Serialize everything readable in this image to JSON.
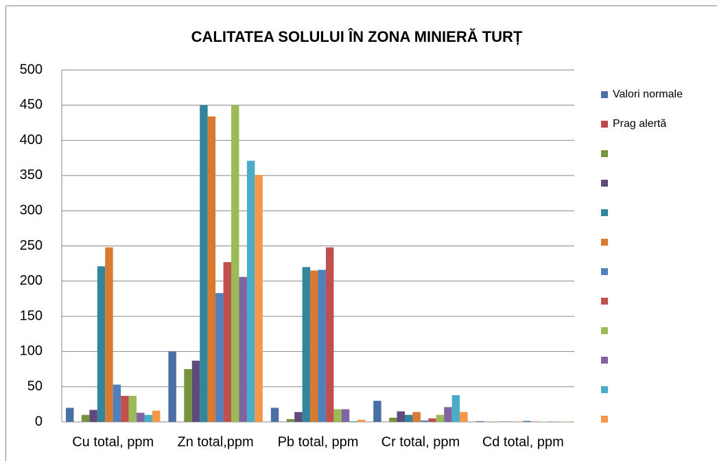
{
  "chart_data": {
    "type": "bar",
    "title": "CALITATEA SOLULUI ÎN ZONA MINIERĂ TURȚ",
    "categories": [
      "Cu total, ppm",
      "Zn total,ppm",
      "Pb total, ppm",
      "Cr total, ppm",
      "Cd total, ppm"
    ],
    "series": [
      {
        "name": "Valori normale",
        "color": "#4a6fa5",
        "values": [
          20,
          100,
          20,
          30,
          1
        ]
      },
      {
        "name": "Prag alertă",
        "color": "#be4b48",
        "values": [
          null,
          null,
          null,
          null,
          null
        ]
      },
      {
        "name": null,
        "color": "#77933c",
        "values": [
          10,
          75,
          4,
          6,
          0.5
        ]
      },
      {
        "name": null,
        "color": "#604a7b",
        "values": [
          17,
          87,
          14,
          15,
          0.5
        ]
      },
      {
        "name": null,
        "color": "#31859c",
        "values": [
          221,
          450,
          220,
          10,
          0.5
        ]
      },
      {
        "name": null,
        "color": "#d87a2f",
        "values": [
          248,
          434,
          215,
          14,
          0.5
        ]
      },
      {
        "name": null,
        "color": "#4f81bd",
        "values": [
          53,
          183,
          216,
          2,
          1.5
        ]
      },
      {
        "name": null,
        "color": "#c0504d",
        "values": [
          37,
          227,
          248,
          5,
          0.5
        ]
      },
      {
        "name": null,
        "color": "#9bbb59",
        "values": [
          37,
          450,
          18,
          10,
          0.5
        ]
      },
      {
        "name": null,
        "color": "#8064a2",
        "values": [
          13,
          206,
          18,
          21,
          0.5
        ]
      },
      {
        "name": null,
        "color": "#4bacc6",
        "values": [
          10,
          371,
          1,
          38,
          0.5
        ]
      },
      {
        "name": null,
        "color": "#f79646",
        "values": [
          16,
          351,
          3,
          14,
          0.5
        ]
      }
    ],
    "ylim": [
      0,
      500
    ],
    "yticks": [
      0,
      50,
      100,
      150,
      200,
      250,
      300,
      350,
      400,
      450,
      500
    ],
    "grid": true,
    "legend": "right"
  }
}
